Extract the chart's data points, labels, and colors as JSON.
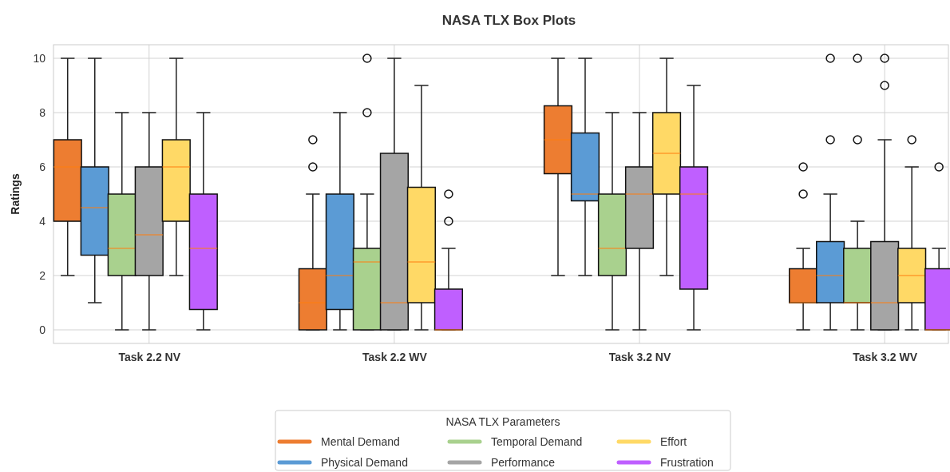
{
  "chart_data": {
    "type": "box",
    "title": "NASA TLX Box Plots",
    "ylabel": "Ratings",
    "legend_title": "NASA TLX Parameters",
    "legend": "bottom",
    "grid": true,
    "categories": [
      "Task 2.2 NV",
      "Task 2.2 WV",
      "Task 3.2 NV",
      "Task 3.2 WV"
    ],
    "ylim": [
      -0.5,
      10.5
    ],
    "yticks": [
      0,
      2,
      4,
      6,
      8,
      10
    ],
    "series": [
      {
        "name": "Mental Demand",
        "color": "#ed7d31",
        "boxes": [
          {
            "low": 2,
            "q1": 4,
            "median": 6,
            "q3": 7,
            "high": 10
          },
          {
            "low": 0,
            "q1": 0,
            "median": 1,
            "q3": 2.25,
            "high": 5,
            "outliers": [
              6,
              7
            ]
          },
          {
            "low": 2,
            "q1": 5.75,
            "median": 7,
            "q3": 8.25,
            "high": 10
          },
          {
            "low": 0,
            "q1": 1,
            "median": 1,
            "q3": 2.25,
            "high": 3,
            "outliers": [
              5,
              6
            ]
          }
        ]
      },
      {
        "name": "Physical Demand",
        "color": "#5b9bd5",
        "boxes": [
          {
            "low": 1,
            "q1": 2.75,
            "median": 4.5,
            "q3": 6,
            "high": 10
          },
          {
            "low": 0,
            "q1": 0.75,
            "median": 2,
            "q3": 5,
            "high": 8
          },
          {
            "low": 2,
            "q1": 4.75,
            "median": 5,
            "q3": 7.25,
            "high": 10
          },
          {
            "low": 0,
            "q1": 1,
            "median": 2,
            "q3": 3.25,
            "high": 5,
            "outliers": [
              7,
              10
            ]
          }
        ]
      },
      {
        "name": "Temporal Demand",
        "color": "#a9d18e",
        "boxes": [
          {
            "low": 0,
            "q1": 2,
            "median": 3,
            "q3": 5,
            "high": 8
          },
          {
            "low": 0,
            "q1": 0,
            "median": 2.5,
            "q3": 3,
            "high": 5,
            "outliers": [
              8,
              10
            ]
          },
          {
            "low": 0,
            "q1": 2,
            "median": 3,
            "q3": 5,
            "high": 8
          },
          {
            "low": 0,
            "q1": 1,
            "median": 1,
            "q3": 3,
            "high": 4,
            "outliers": [
              7,
              10
            ]
          }
        ]
      },
      {
        "name": "Performance",
        "color": "#a5a5a5",
        "boxes": [
          {
            "low": 0,
            "q1": 2,
            "median": 3.5,
            "q3": 6,
            "high": 8
          },
          {
            "low": 0,
            "q1": 0,
            "median": 1,
            "q3": 6.5,
            "high": 10
          },
          {
            "low": 0,
            "q1": 3,
            "median": 5,
            "q3": 6,
            "high": 8
          },
          {
            "low": 0,
            "q1": 0,
            "median": 1,
            "q3": 3.25,
            "high": 7,
            "outliers": [
              9,
              10
            ]
          }
        ]
      },
      {
        "name": "Effort",
        "color": "#ffd966",
        "boxes": [
          {
            "low": 2,
            "q1": 4,
            "median": 6,
            "q3": 7,
            "high": 10
          },
          {
            "low": 0,
            "q1": 1,
            "median": 2.5,
            "q3": 5.25,
            "high": 9
          },
          {
            "low": 2,
            "q1": 5,
            "median": 6.5,
            "q3": 8,
            "high": 10
          },
          {
            "low": 0,
            "q1": 1,
            "median": 2,
            "q3": 3,
            "high": 6,
            "outliers": [
              7
            ]
          }
        ]
      },
      {
        "name": "Frustration",
        "color": "#bf5fff",
        "boxes": [
          {
            "low": 0,
            "q1": 0.75,
            "median": 3,
            "q3": 5,
            "high": 8
          },
          {
            "low": 0,
            "q1": 0,
            "median": 0,
            "q3": 1.5,
            "high": 3,
            "outliers": [
              4,
              5
            ]
          },
          {
            "low": 0,
            "q1": 1.5,
            "median": 5,
            "q3": 6,
            "high": 9
          },
          {
            "low": 0,
            "q1": 0,
            "median": 0,
            "q3": 2.25,
            "high": 3,
            "outliers": [
              6
            ]
          }
        ]
      }
    ]
  }
}
